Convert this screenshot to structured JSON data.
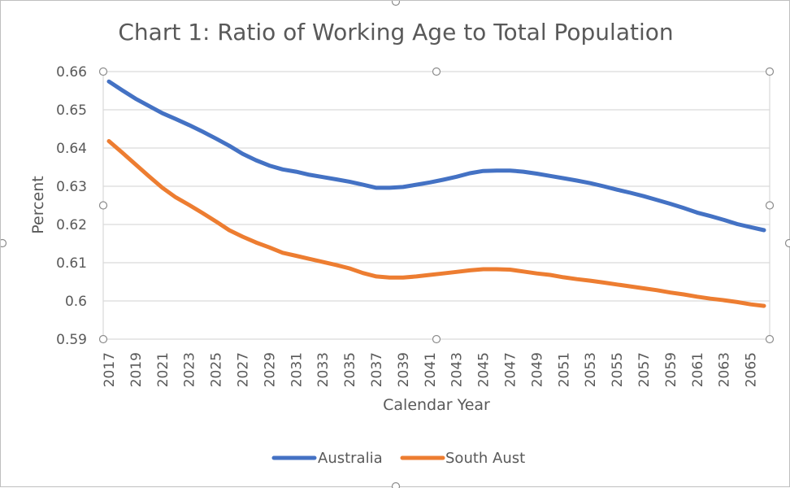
{
  "chart_data": {
    "type": "line",
    "title": "Chart 1: Ratio of Working Age to Total Population",
    "xlabel": "Calendar Year",
    "ylabel": "Percent",
    "ylim": [
      0.59,
      0.66
    ],
    "yticks": [
      "0.66",
      "0.65",
      "0.64",
      "0.63",
      "0.62",
      "0.61",
      "0.6",
      "0.59"
    ],
    "x": [
      2017,
      2018,
      2019,
      2020,
      2021,
      2022,
      2023,
      2024,
      2025,
      2026,
      2027,
      2028,
      2029,
      2030,
      2031,
      2032,
      2033,
      2034,
      2035,
      2036,
      2037,
      2038,
      2039,
      2040,
      2041,
      2042,
      2043,
      2044,
      2045,
      2046,
      2047,
      2048,
      2049,
      2050,
      2051,
      2052,
      2053,
      2054,
      2055,
      2056,
      2057,
      2058,
      2059,
      2060,
      2061,
      2062,
      2063,
      2064,
      2065,
      2066
    ],
    "xtick_labels": [
      "2017",
      "2019",
      "2021",
      "2023",
      "2025",
      "2027",
      "2029",
      "2031",
      "2033",
      "2035",
      "2037",
      "2039",
      "2041",
      "2043",
      "2045",
      "2047",
      "2049",
      "2051",
      "2053",
      "2055",
      "2057",
      "2059",
      "2061",
      "2063",
      "2065"
    ],
    "grid": true,
    "legend_position": "bottom",
    "series": [
      {
        "name": "Australia",
        "color": "#4472C4",
        "values": [
          0.6574,
          0.6551,
          0.6529,
          0.651,
          0.6491,
          0.6476,
          0.646,
          0.6443,
          0.6425,
          0.6406,
          0.6385,
          0.6368,
          0.6354,
          0.6344,
          0.6338,
          0.633,
          0.6324,
          0.6318,
          0.6312,
          0.6304,
          0.6296,
          0.6296,
          0.6298,
          0.6304,
          0.631,
          0.6317,
          0.6325,
          0.6334,
          0.634,
          0.6341,
          0.6341,
          0.6338,
          0.6333,
          0.6327,
          0.6321,
          0.6315,
          0.6308,
          0.63,
          0.6291,
          0.6283,
          0.6274,
          0.6264,
          0.6254,
          0.6243,
          0.6231,
          0.6222,
          0.6212,
          0.6201,
          0.6193,
          0.6185
        ]
      },
      {
        "name": "South Aust",
        "color": "#ED7D31",
        "values": [
          0.6418,
          0.6388,
          0.6357,
          0.6326,
          0.6296,
          0.6271,
          0.6251,
          0.623,
          0.6208,
          0.6185,
          0.6168,
          0.6153,
          0.614,
          0.6126,
          0.6118,
          0.611,
          0.6102,
          0.6094,
          0.6085,
          0.6073,
          0.6064,
          0.6061,
          0.6061,
          0.6064,
          0.6068,
          0.6072,
          0.6076,
          0.608,
          0.6083,
          0.6083,
          0.6082,
          0.6077,
          0.6072,
          0.6068,
          0.6062,
          0.6057,
          0.6053,
          0.6048,
          0.6043,
          0.6038,
          0.6033,
          0.6028,
          0.6022,
          0.6017,
          0.6011,
          0.6006,
          0.6002,
          0.5997,
          0.5991,
          0.5987
        ]
      }
    ]
  }
}
